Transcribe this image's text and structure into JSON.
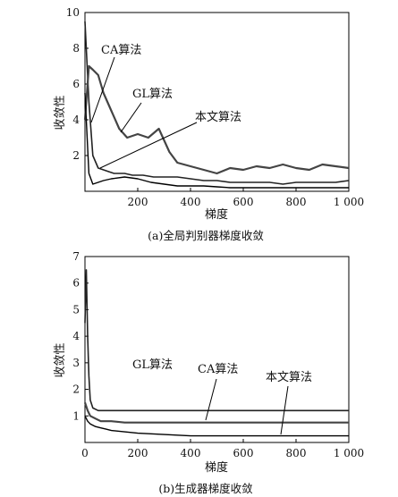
{
  "chart_data": [
    {
      "type": "line",
      "caption": "(a)全局判别器梯度收敛",
      "xlabel": "梯度",
      "ylabel": "收敛性",
      "xlim": [
        0,
        1000
      ],
      "ylim": [
        0,
        10
      ],
      "xticks": [
        0,
        200,
        400,
        600,
        800,
        1000
      ],
      "xtick_labels": [
        "",
        "200",
        "400",
        "600",
        "800",
        "1 000"
      ],
      "yticks": [
        0,
        2,
        4,
        6,
        8,
        10
      ],
      "ytick_labels": [
        "",
        "2",
        "4",
        "6",
        "8",
        "10"
      ],
      "series": [
        {
          "name": "CA算法",
          "x": [
            0,
            15,
            30,
            50,
            70,
            90,
            110,
            130,
            150,
            180,
            220,
            260,
            300,
            350,
            400,
            450,
            500,
            550,
            600,
            650,
            700,
            750,
            800,
            850,
            900,
            950,
            1000
          ],
          "y": [
            9.5,
            5.0,
            2.0,
            1.3,
            1.2,
            1.1,
            1.0,
            1.0,
            1.0,
            0.9,
            0.9,
            0.8,
            0.8,
            0.8,
            0.7,
            0.6,
            0.6,
            0.5,
            0.5,
            0.5,
            0.5,
            0.4,
            0.5,
            0.5,
            0.5,
            0.5,
            0.6
          ]
        },
        {
          "name": "GL算法",
          "x": [
            0,
            15,
            30,
            50,
            70,
            100,
            130,
            160,
            200,
            240,
            280,
            320,
            350,
            400,
            450,
            500,
            550,
            600,
            650,
            700,
            750,
            800,
            850,
            900,
            950,
            1000
          ],
          "y": [
            4.0,
            7.0,
            6.8,
            6.5,
            5.5,
            4.5,
            3.5,
            3.0,
            3.2,
            3.0,
            3.5,
            2.2,
            1.6,
            1.4,
            1.2,
            1.0,
            1.3,
            1.2,
            1.4,
            1.3,
            1.5,
            1.3,
            1.2,
            1.5,
            1.4,
            1.3
          ]
        },
        {
          "name": "本文算法",
          "x": [
            0,
            15,
            30,
            50,
            70,
            100,
            150,
            200,
            250,
            300,
            350,
            400,
            450,
            500,
            550,
            600,
            650,
            700,
            750,
            800,
            850,
            900,
            950,
            1000
          ],
          "y": [
            5.5,
            1.0,
            0.4,
            0.5,
            0.6,
            0.7,
            0.8,
            0.7,
            0.5,
            0.4,
            0.3,
            0.3,
            0.3,
            0.25,
            0.2,
            0.2,
            0.2,
            0.2,
            0.2,
            0.2,
            0.2,
            0.2,
            0.2,
            0.2
          ]
        }
      ]
    },
    {
      "type": "line",
      "caption": "(b)生成器梯度收敛",
      "xlabel": "梯度",
      "ylabel": "收敛性",
      "xlim": [
        0,
        1000
      ],
      "ylim": [
        0,
        7
      ],
      "xticks": [
        0,
        200,
        400,
        600,
        800,
        1000
      ],
      "xtick_labels": [
        "0",
        "200",
        "400",
        "600",
        "800",
        "1 000"
      ],
      "yticks": [
        1,
        2,
        3,
        4,
        5,
        6,
        7
      ],
      "ytick_labels": [
        "1",
        "2",
        "3",
        "4",
        "5",
        "6",
        "7"
      ],
      "series": [
        {
          "name": "GL算法",
          "x": [
            0,
            5,
            10,
            15,
            20,
            30,
            50,
            100,
            200,
            300,
            400,
            500,
            600,
            700,
            800,
            900,
            1000
          ],
          "y": [
            4.5,
            6.5,
            4.0,
            2.5,
            1.6,
            1.3,
            1.2,
            1.2,
            1.2,
            1.2,
            1.2,
            1.2,
            1.2,
            1.2,
            1.2,
            1.2,
            1.2
          ]
        },
        {
          "name": "CA算法",
          "x": [
            0,
            10,
            20,
            40,
            60,
            80,
            100,
            150,
            200,
            300,
            400,
            500,
            600,
            700,
            800,
            900,
            1000
          ],
          "y": [
            1.5,
            1.2,
            1.0,
            0.9,
            0.8,
            0.8,
            0.8,
            0.75,
            0.75,
            0.75,
            0.75,
            0.75,
            0.75,
            0.75,
            0.75,
            0.75,
            0.75
          ]
        },
        {
          "name": "本文算法",
          "x": [
            0,
            10,
            20,
            40,
            60,
            80,
            100,
            150,
            200,
            300,
            400,
            500,
            600,
            700,
            800,
            900,
            1000
          ],
          "y": [
            1.0,
            0.8,
            0.7,
            0.6,
            0.55,
            0.5,
            0.45,
            0.4,
            0.35,
            0.3,
            0.25,
            0.25,
            0.25,
            0.25,
            0.25,
            0.25,
            0.25
          ]
        }
      ]
    }
  ]
}
